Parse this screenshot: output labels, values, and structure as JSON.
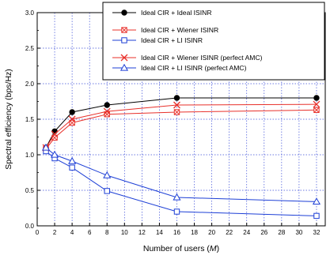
{
  "chart_data": {
    "type": "line",
    "xlabel": "Number of users (M)",
    "xlabel_prefix": "Number of users (",
    "xlabel_var": "M",
    "xlabel_suffix": ")",
    "ylabel": "Spectral efficiency (bps/Hz)",
    "xlim": [
      0,
      33
    ],
    "ylim": [
      0,
      3.0
    ],
    "xticks": [
      0,
      2,
      4,
      6,
      8,
      10,
      12,
      14,
      16,
      18,
      20,
      22,
      24,
      26,
      28,
      30,
      32
    ],
    "yticks": [
      0.0,
      0.5,
      1.0,
      1.5,
      2.0,
      2.5,
      3.0
    ],
    "ytick_labels": [
      "0.0",
      "0.5",
      "1.0",
      "1.5",
      "2.0",
      "2.5",
      "3.0"
    ],
    "grid": true,
    "legend_position": "top-right",
    "x": [
      1,
      2,
      4,
      8,
      16,
      32
    ],
    "series": [
      {
        "name": "Ideal CIR + Ideal ISINR",
        "color": "#000000",
        "marker": "filled-circle",
        "values": [
          1.1,
          1.33,
          1.6,
          1.7,
          1.8,
          1.8
        ]
      },
      {
        "name": "Ideal CIR + Wiener ISINR",
        "color": "#e8302a",
        "marker": "boxed-x",
        "values": [
          1.08,
          1.24,
          1.45,
          1.57,
          1.6,
          1.63
        ]
      },
      {
        "name": "Ideal CIR + LI ISINR",
        "color": "#1d3fd6",
        "marker": "open-square",
        "values": [
          1.05,
          0.95,
          0.82,
          0.49,
          0.2,
          0.14
        ]
      },
      {
        "name": "Ideal CIR + Wiener ISINR (perfect AMC)",
        "color": "#e8302a",
        "marker": "x",
        "values": [
          1.1,
          1.29,
          1.5,
          1.61,
          1.7,
          1.71
        ]
      },
      {
        "name": "Ideal CIR + LI ISINR (perfect AMC)",
        "color": "#1d3fd6",
        "marker": "open-triangle",
        "values": [
          1.1,
          1.0,
          0.91,
          0.71,
          0.4,
          0.34
        ]
      }
    ],
    "legend_groups": [
      [
        0
      ],
      [
        1,
        2
      ],
      [
        3,
        4
      ]
    ]
  }
}
